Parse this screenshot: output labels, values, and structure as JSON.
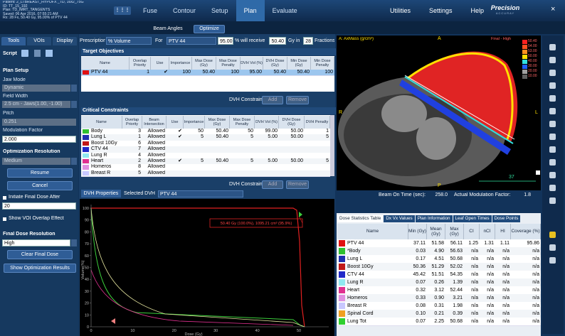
{
  "header": {
    "patient_info": [
      "Patient: 2_LTBREAST_HYPOFX _TD, 16x2_75G",
      "ID: TT_15_192",
      "Plan: TD_IMRT_TANGENTS",
      "Saved: 06 Apr 2016, 07:55:21 AM",
      "Rx: 28 Fx, 50.40 Gy, 95.00% of PTV 44"
    ],
    "menu": [
      "Fuse",
      "Contour",
      "Setup",
      "Plan",
      "Evaluate"
    ],
    "menu_right": [
      "Utilities",
      "Settings",
      "Help"
    ],
    "logo": "Precision",
    "logo_sub": "ACCURAY"
  },
  "subtoolbar": [
    "Beam Angles",
    "Optimize"
  ],
  "left_panel": {
    "tabs": [
      "Tools",
      "VOIs",
      "Display"
    ],
    "script": "Script",
    "plan_setup": "Plan Setup",
    "jaw_mode_label": "Jaw Mode",
    "jaw_mode": "Dynamic",
    "field_width_label": "Field Width",
    "field_width": "2.5 cm - Jaws(1.00, -1.00)",
    "pitch_label": "Pitch",
    "pitch": "0.251",
    "mod_label": "Modulation Factor",
    "mod": "2.000",
    "opt_res_label": "Optimization Resolution",
    "opt_res": "Medium",
    "resume": "Resume",
    "cancel": "Cancel",
    "initiate": "Initiate Final Dose After",
    "initiate_value": "20",
    "show_voi": "Show VOI Overlap Effect",
    "final_res_label": "Final Dose Resolution",
    "final_res": "High",
    "clear": "Clear Final Dose",
    "show_results": "Show Optimization Results"
  },
  "prescription": {
    "label": "Prescription",
    "mode": "% Volume",
    "for": "For",
    "target": "PTV 44",
    "percent": "95.00",
    "will_receive": "% will receive",
    "dose": "50.40",
    "gy_in": "Gy in",
    "fractions": "28",
    "fractions_label": "Fractions"
  },
  "target_objectives": {
    "title": "Target Objectives",
    "columns": [
      "Name",
      "Overlap Priority",
      "Use",
      "Importance",
      "Max Dose (Gy)",
      "Max Dose Penalty",
      "DVH Vol (%)",
      "DVH Dose (Gy)",
      "Min Dose (Gy)",
      "Min Dose Penalty"
    ],
    "rows": [
      [
        "PTV 44",
        "1",
        "✔",
        "100",
        "50.40",
        "100",
        "95.00",
        "50.40",
        "50.40",
        "100"
      ]
    ],
    "colors": [
      "#e01010"
    ]
  },
  "buttons": {
    "dvh_constraint": "DVH Constraint",
    "add": "Add",
    "remove": "Remove"
  },
  "critical_constraints": {
    "title": "Critical Constraints",
    "columns": [
      "Name",
      "Overlap Priority",
      "Beam Intersection",
      "Use",
      "Importance",
      "Max Dose (Gy)",
      "Max Dose Penalty",
      "DVH Vol (%)",
      "DVH Dose (Gy)",
      "DVH Penalty"
    ],
    "rows": [
      [
        "Body",
        "3",
        "Allowed",
        "✔",
        "50",
        "50.40",
        "50",
        "99.00",
        "50.00",
        "1"
      ],
      [
        "Lung L",
        "1",
        "Allowed",
        "✔",
        "5",
        "50.40",
        "5",
        "5.00",
        "50.00",
        "5"
      ],
      [
        "Boost 10Gy",
        "6",
        "Allowed"
      ],
      [
        "CTV 44",
        "7",
        "Allowed"
      ],
      [
        "Lung R",
        "4",
        "Allowed"
      ],
      [
        "Heart",
        "2",
        "Allowed",
        "✔",
        "5",
        "50.40",
        "5",
        "5.00",
        "50.00",
        "5"
      ],
      [
        "Homeros",
        "8",
        "Allowed"
      ],
      [
        "Breast R",
        "5",
        "Allowed"
      ]
    ],
    "colors": [
      "#30c030",
      "#2030b0",
      "#c01818",
      "#2028c8",
      "#90e8f0",
      "#e03090",
      "#e090e0",
      "#c8c8ff"
    ]
  },
  "dvh": {
    "tab": "DVH Properties",
    "selected_label": "Selected DVH",
    "selected": "PTV 44",
    "y_label": "Volume(%)",
    "x_label": "Dose (Gy)",
    "yticks": [
      "100",
      "90",
      "80",
      "70",
      "60",
      "50",
      "40",
      "30",
      "20",
      "10",
      "0"
    ],
    "xticks": [
      "0",
      "10",
      "20",
      "30",
      "40",
      "50"
    ],
    "annotation": "50.40 Gy (100.0%), 1095.21 cm³ (95.9%)"
  },
  "ct_view": {
    "label": "A: AxMass (g/cm³)",
    "top": "A",
    "left": "R",
    "right": "L",
    "bottom": "P",
    "angle": "37",
    "legend_title": "Final - High",
    "legend": [
      "50.40",
      "54.00",
      "53.00",
      "50.00",
      "40.00",
      "30.00",
      "20.00",
      "10.00"
    ]
  },
  "beam": {
    "beam_on_label": "Beam On Time (sec):",
    "beam_on": "258.0",
    "mod_label": "Actual Modulation Factor:",
    "mod": "1.8"
  },
  "dose_stats": {
    "tabs": [
      "Dose Statistics Table",
      "Dx Vx Values",
      "Plan Information",
      "Leaf Open Times",
      "Dose Points"
    ],
    "columns": [
      "Name",
      "Min (Gy)",
      "Mean (Gy)",
      "Max (Gy)",
      "CI",
      "nCI",
      "HI",
      "Coverage (%)"
    ],
    "rows": [
      [
        "PTV 44",
        "37.11",
        "51.58",
        "56.11",
        "1.25",
        "1.31",
        "1.11",
        "95.86"
      ],
      [
        "*Body",
        "0.03",
        "4.90",
        "56.63",
        "n/a",
        "n/a",
        "n/a",
        "n/a"
      ],
      [
        "Lung L",
        "0.17",
        "4.51",
        "50.68",
        "n/a",
        "n/a",
        "n/a",
        "n/a"
      ],
      [
        "Boost 10Gy",
        "50.36",
        "51.29",
        "52.02",
        "n/a",
        "n/a",
        "n/a",
        "n/a"
      ],
      [
        "CTV 44",
        "45.42",
        "51.51",
        "54.35",
        "n/a",
        "n/a",
        "n/a",
        "n/a"
      ],
      [
        "Lung R",
        "0.07",
        "0.26",
        "1.39",
        "n/a",
        "n/a",
        "n/a",
        "n/a"
      ],
      [
        "Heart",
        "0.32",
        "3.12",
        "52.44",
        "n/a",
        "n/a",
        "n/a",
        "n/a"
      ],
      [
        "Homeros",
        "0.33",
        "0.90",
        "3.21",
        "n/a",
        "n/a",
        "n/a",
        "n/a"
      ],
      [
        "Breast R",
        "0.08",
        "0.31",
        "1.98",
        "n/a",
        "n/a",
        "n/a",
        "n/a"
      ],
      [
        "Spinal Cord",
        "0.10",
        "0.21",
        "0.39",
        "n/a",
        "n/a",
        "n/a",
        "n/a"
      ],
      [
        "Lung Tot",
        "0.07",
        "2.25",
        "50.68",
        "n/a",
        "n/a",
        "n/a",
        "n/a"
      ]
    ],
    "colors": [
      "#e01010",
      "#30c030",
      "#2030b0",
      "#c01818",
      "#2028c8",
      "#90e8f0",
      "#e03090",
      "#e090e0",
      "#c8c8ff",
      "#f0a020",
      "#30d030"
    ]
  }
}
